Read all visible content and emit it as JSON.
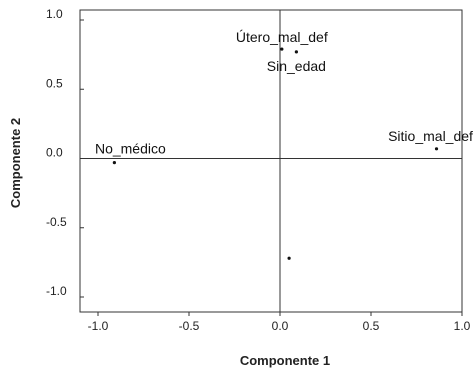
{
  "chart_data": {
    "type": "scatter",
    "xlabel": "Componente 1",
    "ylabel": "Componente 2",
    "xlim": [
      -1.0,
      1.0
    ],
    "ylim": [
      -1.0,
      1.0
    ],
    "x_ticks": [
      "-1.0",
      "-0.5",
      "0.0",
      "0.5",
      "1.0"
    ],
    "y_ticks": [
      "1.0",
      "0.5",
      "0.0",
      "-0.5",
      "-1.0"
    ],
    "reference_lines": {
      "x": 0,
      "y": 0
    },
    "grid": false,
    "points": [
      {
        "label": "Útero_mal_def",
        "x": 0.01,
        "y": 0.79
      },
      {
        "label": "Sin_edad",
        "x": 0.09,
        "y": 0.77
      },
      {
        "label": "Sitio_mal_def",
        "x": 0.86,
        "y": 0.07
      },
      {
        "label": "No_médico",
        "x": -0.91,
        "y": -0.03
      },
      {
        "label": "",
        "x": 0.05,
        "y": -0.72
      }
    ]
  }
}
